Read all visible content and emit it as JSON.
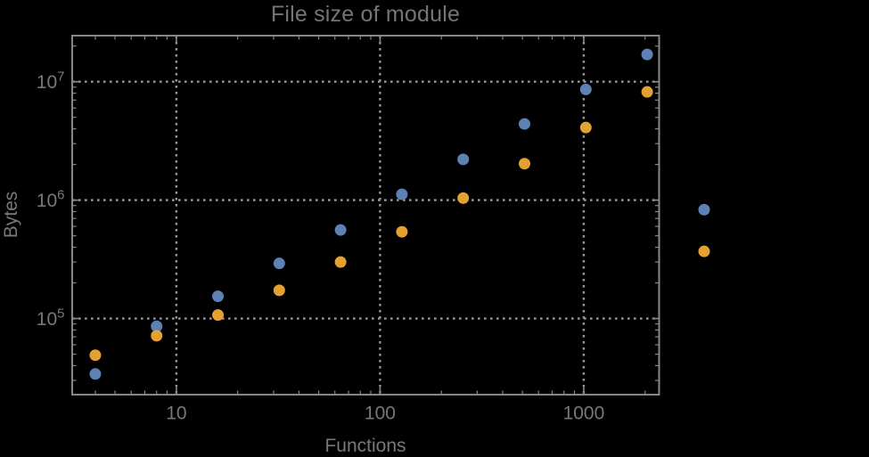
{
  "page": {
    "background_color": "#000000"
  },
  "chart_data": {
    "type": "scatter",
    "title": "File size of module",
    "xlabel": "Functions",
    "ylabel": "Bytes",
    "xscale": "log",
    "yscale": "log",
    "xlim": [
      3.08,
      2344
    ],
    "ylim": [
      22750,
      24500000
    ],
    "x_major_ticks": [
      10,
      100,
      1000
    ],
    "x_tick_labels": [
      "10",
      "100",
      "1000"
    ],
    "y_major_ticks": [
      100000,
      1000000,
      10000000
    ],
    "y_tick_labels": [
      "10^5",
      "10^6",
      "10^7"
    ],
    "grid": {
      "shown": true,
      "style": "dotted",
      "color": "#979797"
    },
    "legend": null,
    "frame_color": "#878787",
    "text_color": "#787878",
    "series": [
      {
        "name": "blue-series",
        "color": "#5E81B5",
        "points": [
          [
            4,
            34000
          ],
          [
            8,
            86000
          ],
          [
            16,
            154000
          ],
          [
            32,
            292000
          ],
          [
            64,
            560000
          ],
          [
            128,
            1120000
          ],
          [
            256,
            2210000
          ],
          [
            512,
            4400000
          ],
          [
            1024,
            8600000
          ],
          [
            2048,
            17000000
          ],
          [
            3900,
            830000
          ]
        ]
      },
      {
        "name": "orange-series",
        "color": "#E4A132",
        "points": [
          [
            4,
            49000
          ],
          [
            8,
            71500
          ],
          [
            16,
            107000
          ],
          [
            32,
            173000
          ],
          [
            64,
            300000
          ],
          [
            128,
            540000
          ],
          [
            256,
            1040000
          ],
          [
            512,
            2030000
          ],
          [
            1024,
            4100000
          ],
          [
            2048,
            8200000
          ],
          [
            3900,
            369000
          ]
        ]
      }
    ]
  }
}
